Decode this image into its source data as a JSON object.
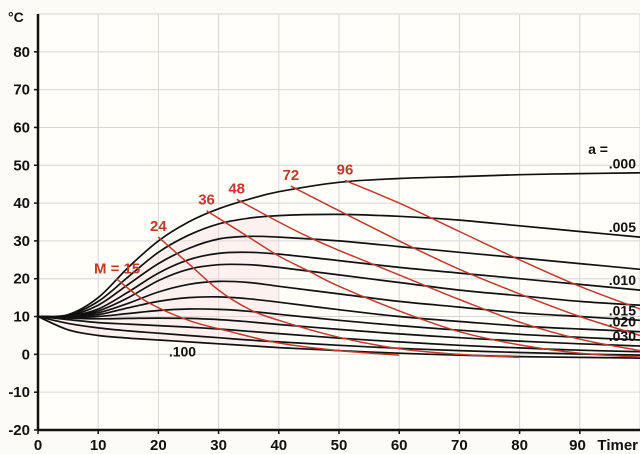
{
  "chart_data": {
    "type": "line",
    "y_unit": "°C",
    "x_unit": "Timer",
    "xlim": [
      0,
      100
    ],
    "ylim": [
      -20,
      90
    ],
    "x_ticks": [
      0,
      10,
      20,
      30,
      40,
      50,
      60,
      70,
      80,
      90
    ],
    "y_ticks": [
      -20,
      -10,
      0,
      10,
      20,
      30,
      40,
      50,
      60,
      70,
      80,
      90
    ],
    "grid": true,
    "a_header": "a =",
    "series": [
      {
        "name": ".000",
        "points": [
          [
            0,
            10
          ],
          [
            5,
            10.5
          ],
          [
            10,
            15
          ],
          [
            15,
            23
          ],
          [
            20,
            30
          ],
          [
            25,
            35
          ],
          [
            30,
            38.5
          ],
          [
            35,
            41
          ],
          [
            40,
            43
          ],
          [
            50,
            45.5
          ],
          [
            60,
            46.5
          ],
          [
            70,
            47
          ],
          [
            80,
            47.5
          ],
          [
            90,
            47.8
          ],
          [
            100,
            48
          ]
        ]
      },
      {
        "name": ".005",
        "points": [
          [
            0,
            10
          ],
          [
            5,
            10.3
          ],
          [
            10,
            14
          ],
          [
            15,
            20.5
          ],
          [
            20,
            27
          ],
          [
            25,
            31.5
          ],
          [
            30,
            34.5
          ],
          [
            35,
            36
          ],
          [
            40,
            36.7
          ],
          [
            50,
            37
          ],
          [
            60,
            36.5
          ],
          [
            70,
            35.5
          ],
          [
            80,
            34
          ],
          [
            90,
            32.5
          ],
          [
            100,
            31
          ]
        ]
      },
      {
        "name": "",
        "points": [
          [
            0,
            10
          ],
          [
            5,
            10.2
          ],
          [
            10,
            13
          ],
          [
            15,
            18.5
          ],
          [
            20,
            24
          ],
          [
            25,
            28
          ],
          [
            30,
            30.5
          ],
          [
            35,
            31.2
          ],
          [
            40,
            31
          ],
          [
            50,
            30
          ],
          [
            60,
            28.5
          ],
          [
            70,
            27
          ],
          [
            80,
            25.5
          ],
          [
            90,
            24
          ],
          [
            100,
            22.5
          ]
        ]
      },
      {
        "name": ".010",
        "points": [
          [
            0,
            10
          ],
          [
            5,
            10.1
          ],
          [
            10,
            12
          ],
          [
            15,
            16.5
          ],
          [
            20,
            21.5
          ],
          [
            25,
            25
          ],
          [
            30,
            26.7
          ],
          [
            35,
            27
          ],
          [
            40,
            26.5
          ],
          [
            50,
            24.8
          ],
          [
            60,
            23
          ],
          [
            70,
            21.5
          ],
          [
            80,
            20
          ],
          [
            90,
            18.5
          ],
          [
            100,
            17
          ]
        ]
      },
      {
        "name": "",
        "points": [
          [
            0,
            10
          ],
          [
            5,
            10
          ],
          [
            10,
            11.5
          ],
          [
            15,
            15
          ],
          [
            20,
            19.5
          ],
          [
            25,
            22.5
          ],
          [
            30,
            23.7
          ],
          [
            35,
            23.7
          ],
          [
            40,
            23
          ],
          [
            50,
            21
          ],
          [
            60,
            19
          ],
          [
            70,
            17
          ],
          [
            80,
            15.5
          ],
          [
            90,
            14
          ],
          [
            100,
            13
          ]
        ]
      },
      {
        "name": ".015",
        "points": [
          [
            0,
            10
          ],
          [
            5,
            10
          ],
          [
            10,
            11
          ],
          [
            15,
            13.5
          ],
          [
            20,
            16.5
          ],
          [
            25,
            18.5
          ],
          [
            30,
            19.3
          ],
          [
            35,
            19
          ],
          [
            40,
            18
          ],
          [
            50,
            16
          ],
          [
            60,
            14
          ],
          [
            70,
            12.5
          ],
          [
            80,
            11
          ],
          [
            90,
            10
          ],
          [
            100,
            9
          ]
        ]
      },
      {
        "name": ".020",
        "points": [
          [
            0,
            10
          ],
          [
            5,
            9.9
          ],
          [
            10,
            10.5
          ],
          [
            15,
            12.3
          ],
          [
            20,
            14
          ],
          [
            25,
            15
          ],
          [
            30,
            15.2
          ],
          [
            35,
            14.7
          ],
          [
            40,
            13.8
          ],
          [
            50,
            11.8
          ],
          [
            60,
            10
          ],
          [
            70,
            8.7
          ],
          [
            80,
            7.5
          ],
          [
            90,
            6.7
          ],
          [
            100,
            6
          ]
        ]
      },
      {
        "name": "",
        "points": [
          [
            0,
            10
          ],
          [
            5,
            9.8
          ],
          [
            10,
            10
          ],
          [
            15,
            10.8
          ],
          [
            20,
            11.6
          ],
          [
            25,
            12
          ],
          [
            30,
            11.9
          ],
          [
            35,
            11.4
          ],
          [
            40,
            10.6
          ],
          [
            50,
            9
          ],
          [
            60,
            7.6
          ],
          [
            70,
            6.4
          ],
          [
            80,
            5.3
          ],
          [
            90,
            4.5
          ],
          [
            100,
            3.8
          ]
        ]
      },
      {
        "name": ".030",
        "points": [
          [
            0,
            10
          ],
          [
            5,
            9.6
          ],
          [
            10,
            9.4
          ],
          [
            15,
            9.5
          ],
          [
            20,
            9.6
          ],
          [
            25,
            9.5
          ],
          [
            30,
            9.2
          ],
          [
            35,
            8.6
          ],
          [
            40,
            7.9
          ],
          [
            50,
            6.6
          ],
          [
            60,
            5.4
          ],
          [
            70,
            4.4
          ],
          [
            80,
            3.5
          ],
          [
            90,
            2.8
          ],
          [
            100,
            2.2
          ]
        ]
      },
      {
        "name": "",
        "points": [
          [
            0,
            10
          ],
          [
            5,
            9.2
          ],
          [
            10,
            8.4
          ],
          [
            15,
            8
          ],
          [
            20,
            7.6
          ],
          [
            25,
            7.2
          ],
          [
            30,
            6.7
          ],
          [
            35,
            6.1
          ],
          [
            40,
            5.5
          ],
          [
            50,
            4.3
          ],
          [
            60,
            3.3
          ],
          [
            70,
            2.4
          ],
          [
            80,
            1.7
          ],
          [
            90,
            1.1
          ],
          [
            100,
            0.7
          ]
        ]
      },
      {
        "name": "",
        "points": [
          [
            0,
            10
          ],
          [
            5,
            8.2
          ],
          [
            10,
            7
          ],
          [
            15,
            6.2
          ],
          [
            20,
            5.6
          ],
          [
            25,
            5
          ],
          [
            30,
            4.4
          ],
          [
            35,
            3.8
          ],
          [
            40,
            3.3
          ],
          [
            50,
            2.4
          ],
          [
            60,
            1.6
          ],
          [
            70,
            1
          ],
          [
            80,
            0.5
          ],
          [
            90,
            0.1
          ],
          [
            100,
            -0.2
          ]
        ]
      },
      {
        "name": ".100",
        "points": [
          [
            0,
            10
          ],
          [
            5,
            6.5
          ],
          [
            10,
            5
          ],
          [
            15,
            4.3
          ],
          [
            20,
            3.8
          ],
          [
            25,
            3.3
          ],
          [
            30,
            2.8
          ],
          [
            35,
            2.3
          ],
          [
            40,
            1.8
          ],
          [
            50,
            1
          ],
          [
            60,
            0.3
          ],
          [
            70,
            -0.2
          ],
          [
            80,
            -0.6
          ],
          [
            90,
            -0.8
          ],
          [
            100,
            -1
          ]
        ]
      }
    ],
    "m_lines": [
      {
        "label": "M = 15",
        "points": [
          [
            13,
            20
          ],
          [
            18,
            14
          ],
          [
            25,
            9
          ],
          [
            32,
            6
          ],
          [
            40,
            3
          ],
          [
            50,
            1
          ],
          [
            60,
            -0.2
          ]
        ]
      },
      {
        "label": "24",
        "points": [
          [
            20,
            31
          ],
          [
            25,
            24
          ],
          [
            30,
            17
          ],
          [
            35,
            12
          ],
          [
            40,
            9
          ],
          [
            50,
            4.5
          ],
          [
            60,
            1.5
          ],
          [
            70,
            0
          ],
          [
            80,
            -0.8
          ]
        ]
      },
      {
        "label": "36",
        "points": [
          [
            28,
            38
          ],
          [
            35,
            31
          ],
          [
            40,
            26
          ],
          [
            45,
            22
          ],
          [
            50,
            18
          ],
          [
            60,
            11.5
          ],
          [
            70,
            6
          ],
          [
            80,
            2.5
          ],
          [
            90,
            0.3
          ],
          [
            100,
            -0.7
          ]
        ]
      },
      {
        "label": "48",
        "points": [
          [
            33,
            41
          ],
          [
            40,
            35
          ],
          [
            45,
            31
          ],
          [
            50,
            27.5
          ],
          [
            60,
            21
          ],
          [
            70,
            14.5
          ],
          [
            80,
            8.5
          ],
          [
            90,
            4
          ],
          [
            100,
            1
          ]
        ]
      },
      {
        "label": "72",
        "points": [
          [
            42,
            44.5
          ],
          [
            50,
            38
          ],
          [
            60,
            30
          ],
          [
            70,
            22.5
          ],
          [
            80,
            16
          ],
          [
            90,
            10
          ],
          [
            100,
            5
          ]
        ]
      },
      {
        "label": "96",
        "points": [
          [
            51,
            46
          ],
          [
            60,
            40
          ],
          [
            70,
            32.5
          ],
          [
            80,
            25
          ],
          [
            90,
            18
          ],
          [
            100,
            12
          ]
        ]
      }
    ]
  }
}
